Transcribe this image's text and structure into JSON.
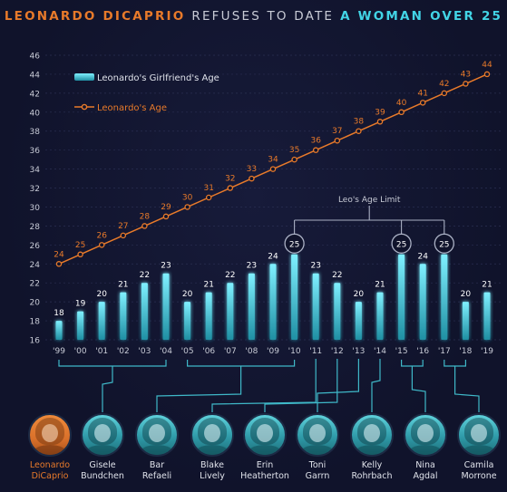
{
  "title": {
    "part1": "LEONARDO DICAPRIO",
    "part2": "REFUSES TO DATE",
    "part3": "A WOMAN OVER 25"
  },
  "legend": {
    "girlfriend": "Leonardo's Girlfriend's Age",
    "leo": "Leonardo's Age"
  },
  "age_limit_label": "Leo's Age Limit",
  "colors": {
    "leo": "#e87a2a",
    "bar": "#42d4e6",
    "text": "#c8cbd6",
    "background": "#10132b"
  },
  "chart_data": {
    "type": "bar",
    "categories": [
      "'99",
      "'00",
      "'01",
      "'02",
      "'03",
      "'04",
      "'05",
      "'06",
      "'07",
      "'08",
      "'09",
      "'10",
      "'11",
      "'12",
      "'13",
      "'14",
      "'15",
      "'16",
      "'17",
      "'18",
      "'19"
    ],
    "series": [
      {
        "name": "Leonardo's Girlfriend's Age",
        "type": "bar",
        "values": [
          18,
          19,
          20,
          21,
          22,
          23,
          20,
          21,
          22,
          23,
          24,
          25,
          23,
          22,
          20,
          21,
          25,
          24,
          25,
          20,
          21
        ]
      },
      {
        "name": "Leonardo's Age",
        "type": "line",
        "values": [
          24,
          25,
          26,
          27,
          28,
          29,
          30,
          31,
          32,
          33,
          34,
          35,
          36,
          37,
          38,
          39,
          40,
          41,
          42,
          43,
          44
        ]
      }
    ],
    "highlighted_value": 25,
    "ylim": [
      16,
      46
    ],
    "yticks": [
      16,
      18,
      20,
      22,
      24,
      26,
      28,
      30,
      32,
      34,
      36,
      38,
      40,
      42,
      44,
      46
    ],
    "grid": true,
    "legend_position": "top-left"
  },
  "people": [
    {
      "first": "Leonardo",
      "last": "DiCaprio",
      "highlight": true
    },
    {
      "first": "Gisele",
      "last": "Bundchen"
    },
    {
      "first": "Bar",
      "last": "Refaeli"
    },
    {
      "first": "Blake",
      "last": "Lively"
    },
    {
      "first": "Erin",
      "last": "Heatherton"
    },
    {
      "first": "Toni",
      "last": "Garrn"
    },
    {
      "first": "Kelly",
      "last": "Rohrbach"
    },
    {
      "first": "Nina",
      "last": "Agdal"
    },
    {
      "first": "Camila",
      "last": "Morrone"
    }
  ]
}
